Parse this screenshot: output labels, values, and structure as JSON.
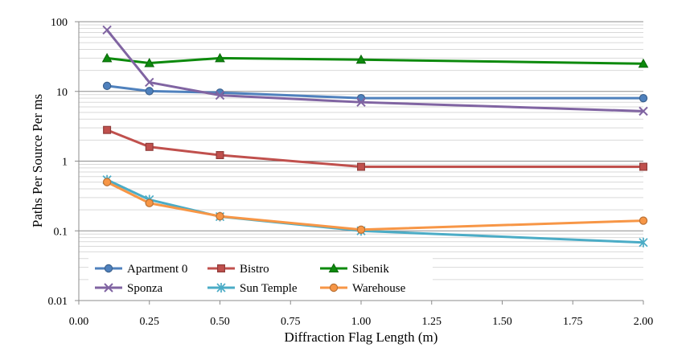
{
  "chart_data": {
    "type": "line",
    "xlabel": "Diffraction Flag Length (m)",
    "ylabel": "Paths Per Source Per ms",
    "xlim": [
      0,
      2
    ],
    "ylim": [
      0.01,
      100
    ],
    "y_scale": "log",
    "x_ticks": [
      "0.00",
      "0.25",
      "0.50",
      "0.75",
      "1.00",
      "1.25",
      "1.50",
      "1.75",
      "2.00"
    ],
    "y_ticks": [
      "0.01",
      "0.1",
      "1",
      "10",
      "100"
    ],
    "grid": "horizontal",
    "legend_position": "bottom-left",
    "x": [
      0.1,
      0.25,
      0.5,
      1.0,
      2.0
    ],
    "series": [
      {
        "name": "Apartment 0",
        "color": "#4f81bd",
        "marker": "circle",
        "values": [
          12,
          10.1,
          9.6,
          8.0,
          8.0
        ]
      },
      {
        "name": "Bistro",
        "color": "#c0504d",
        "marker": "square",
        "values": [
          2.8,
          1.6,
          1.22,
          0.83,
          0.83
        ]
      },
      {
        "name": "Sibenik",
        "color": "#0d8a0d",
        "marker": "triangle",
        "values": [
          30,
          25.5,
          30,
          28.5,
          25
        ]
      },
      {
        "name": "Sponza",
        "color": "#8064a2",
        "marker": "x",
        "values": [
          76,
          13.5,
          8.8,
          7.0,
          5.2
        ]
      },
      {
        "name": "Sun Temple",
        "color": "#4bacc6",
        "marker": "star",
        "values": [
          0.54,
          0.28,
          0.16,
          0.1,
          0.068
        ]
      },
      {
        "name": "Warehouse",
        "color": "#f79646",
        "marker": "circle",
        "values": [
          0.5,
          0.25,
          0.162,
          0.104,
          0.14
        ]
      }
    ]
  }
}
